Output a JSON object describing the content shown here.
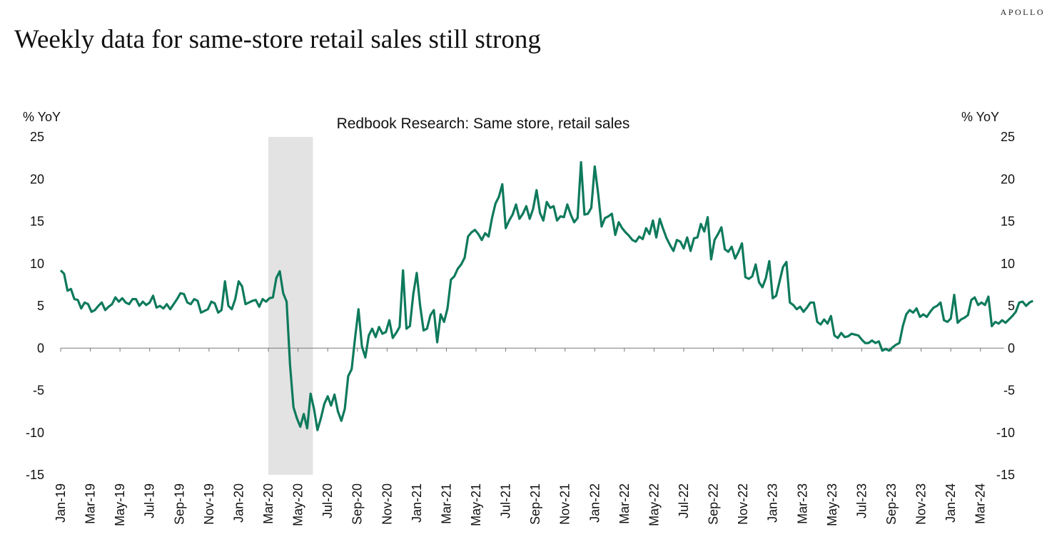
{
  "brand": "APOLLO",
  "headline": "Weekly data for same-store retail sales still strong",
  "colors": {
    "line": "#0e7a5c",
    "recession_shade": "#e3e3e3",
    "axis": "#7a7a7a"
  },
  "chart_data": {
    "type": "line",
    "title": "Redbook Research: Same store, retail sales",
    "ylabel_left": "% YoY",
    "ylabel_right": "% YoY",
    "ylim": [
      -15,
      25
    ],
    "yticks": [
      25,
      20,
      15,
      10,
      5,
      0,
      -5,
      -10,
      -15
    ],
    "grid": false,
    "x_tick_labels": [
      "Jan-19",
      "Mar-19",
      "May-19",
      "Jul-19",
      "Sep-19",
      "Nov-19",
      "Jan-20",
      "Mar-20",
      "May-20",
      "Jul-20",
      "Sep-20",
      "Nov-20",
      "Jan-21",
      "Mar-21",
      "May-21",
      "Jul-21",
      "Sep-21",
      "Nov-21",
      "Jan-22",
      "Mar-22",
      "May-22",
      "Jul-22",
      "Sep-22",
      "Nov-22",
      "Jan-23",
      "Mar-23",
      "May-23",
      "Jul-23",
      "Sep-23",
      "Nov-23",
      "Jan-24",
      "Mar-24"
    ],
    "shaded_region": {
      "start": "2020-03",
      "end": "2020-06"
    },
    "series": [
      {
        "x_start": "2019-01",
        "frequency": "weekly",
        "values": [
          9.2,
          8.8,
          6.8,
          7.0,
          5.8,
          5.7,
          4.7,
          5.4,
          5.2,
          4.3,
          4.5,
          5.0,
          5.4,
          4.5,
          4.9,
          5.2,
          6.0,
          5.5,
          5.9,
          5.4,
          5.2,
          5.8,
          5.8,
          5.0,
          5.5,
          5.1,
          5.4,
          6.2,
          4.8,
          5.0,
          4.7,
          5.2,
          4.6,
          5.2,
          5.8,
          6.5,
          6.4,
          5.4,
          5.2,
          5.8,
          5.6,
          4.2,
          4.4,
          4.6,
          5.5,
          5.3,
          4.2,
          4.5,
          7.9,
          5.0,
          4.6,
          5.8,
          7.9,
          7.3,
          5.2,
          5.4,
          5.6,
          5.7,
          4.9,
          5.8,
          5.5,
          5.9,
          6.0,
          8.3,
          9.1,
          6.5,
          5.5,
          -2.0,
          -7.0,
          -8.3,
          -9.3,
          -7.8,
          -9.5,
          -5.4,
          -7.2,
          -9.7,
          -8.3,
          -6.6,
          -5.7,
          -6.8,
          -5.5,
          -7.5,
          -8.6,
          -7.2,
          -3.3,
          -2.5,
          1.2,
          4.6,
          0.2,
          -1.1,
          1.5,
          2.3,
          1.3,
          2.5,
          1.7,
          1.9,
          3.3,
          1.2,
          1.8,
          2.5,
          9.2,
          2.3,
          2.6,
          6.4,
          8.9,
          5.0,
          2.1,
          2.3,
          3.9,
          4.5,
          0.7,
          4.0,
          3.1,
          4.7,
          8.1,
          8.5,
          9.4,
          9.9,
          10.7,
          13.2,
          13.7,
          14.0,
          13.5,
          12.8,
          13.6,
          13.2,
          15.4,
          17.1,
          17.9,
          19.4,
          14.2,
          15.1,
          15.8,
          17.0,
          15.3,
          15.9,
          16.8,
          15.3,
          16.5,
          18.7,
          16.0,
          15.1,
          17.3,
          16.6,
          16.8,
          15.1,
          15.6,
          15.5,
          17.0,
          15.8,
          14.9,
          15.4,
          22.0,
          15.8,
          15.9,
          16.6,
          21.5,
          18.3,
          14.4,
          15.4,
          15.6,
          15.9,
          13.4,
          14.9,
          14.2,
          13.7,
          13.3,
          12.8,
          12.6,
          13.2,
          12.9,
          14.2,
          13.5,
          15.1,
          13.1,
          15.3,
          14.1,
          13.0,
          12.2,
          11.5,
          12.8,
          12.6,
          11.8,
          13.1,
          11.5,
          13.0,
          13.1,
          14.7,
          13.8,
          15.5,
          10.5,
          12.8,
          13.5,
          14.3,
          11.7,
          11.4,
          12.0,
          10.6,
          11.4,
          12.4,
          8.4,
          8.2,
          8.5,
          9.9,
          7.8,
          7.2,
          8.3,
          10.3,
          5.9,
          6.2,
          7.9,
          9.6,
          10.2,
          5.4,
          5.1,
          4.6,
          4.9,
          4.3,
          4.8,
          5.4,
          5.4,
          3.1,
          2.8,
          3.4,
          2.9,
          3.8,
          1.5,
          1.2,
          1.8,
          1.3,
          1.4,
          1.7,
          1.6,
          1.5,
          1.0,
          0.6,
          0.6,
          0.9,
          0.6,
          0.8,
          -0.3,
          -0.1,
          -0.3,
          0.1,
          0.4,
          0.6,
          2.6,
          4.0,
          4.5,
          4.2,
          4.7,
          3.7,
          4.0,
          3.7,
          4.3,
          4.8,
          5.0,
          5.4,
          3.3,
          3.1,
          3.5,
          6.3,
          3.0,
          3.4,
          3.6,
          3.9,
          5.7,
          6.0,
          5.1,
          5.4,
          5.1,
          6.1,
          2.6,
          3.1,
          2.9,
          3.3,
          3.0,
          3.4,
          3.8,
          4.3,
          5.4,
          5.5,
          5.0,
          5.4,
          5.6
        ]
      }
    ]
  }
}
